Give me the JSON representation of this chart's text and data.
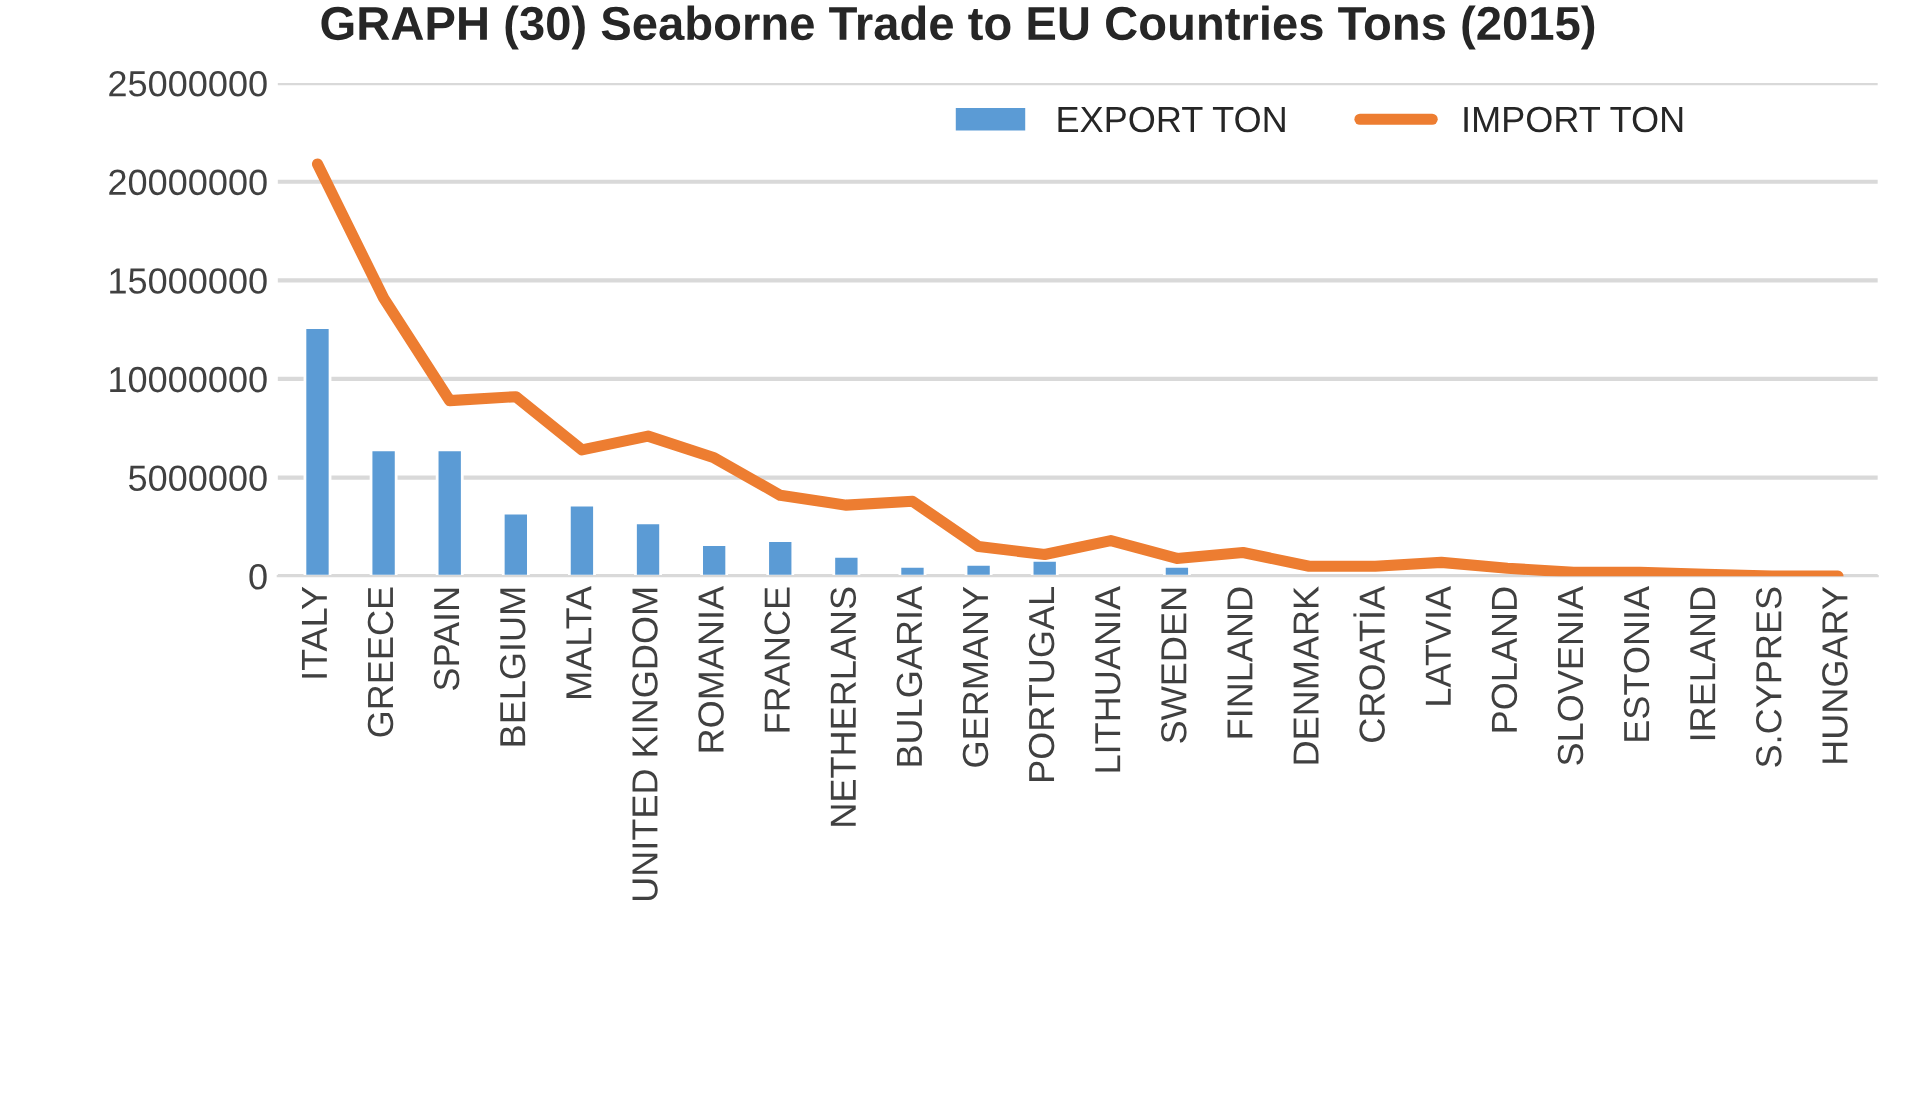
{
  "chart_data": {
    "type": "bar",
    "title": "GRAPH (30) Seaborne Trade to EU Countries Tons (2015)",
    "categories": [
      "ITALY",
      "GREECE",
      "SPAIN",
      "BELGIUM",
      "MALTA",
      "UNITED KINGDOM",
      "ROMANIA",
      "FRANCE",
      "NETHERLANS",
      "BULGARIA",
      "GERMANY",
      "PORTUGAL",
      "LITHUANIA",
      "SWEDEN",
      "FINLAND",
      "DENMARK",
      "CROATİA",
      "LATVIA",
      "POLAND",
      "SLOVENIA",
      "ESTONIA",
      "IRELAND",
      "S.CYPRES",
      "HUNGARY"
    ],
    "series": [
      {
        "name": "EXPORT TON",
        "color": "#5b9bd5",
        "values": [
          12600000,
          6400000,
          6400000,
          3200000,
          3600000,
          2700000,
          1600000,
          1800000,
          1000000,
          500000,
          600000,
          800000,
          null,
          500000,
          null,
          null,
          null,
          null,
          null,
          null,
          null,
          null,
          null,
          null
        ]
      },
      {
        "name": "IMPORT TON",
        "type": "line",
        "color": "#ed7d31",
        "values": [
          20900000,
          14100000,
          8900000,
          9100000,
          6400000,
          7100000,
          6000000,
          4100000,
          3600000,
          3800000,
          1500000,
          1100000,
          1800000,
          900000,
          1200000,
          500000,
          500000,
          700000,
          400000,
          200000,
          200000,
          100000,
          0,
          0
        ]
      }
    ],
    "ylim": [
      0,
      25000000
    ],
    "yticks": [
      0,
      5000000,
      10000000,
      15000000,
      20000000,
      25000000
    ],
    "grid": "y",
    "legend": "top right",
    "marker": "none",
    "line_style": "solid"
  }
}
